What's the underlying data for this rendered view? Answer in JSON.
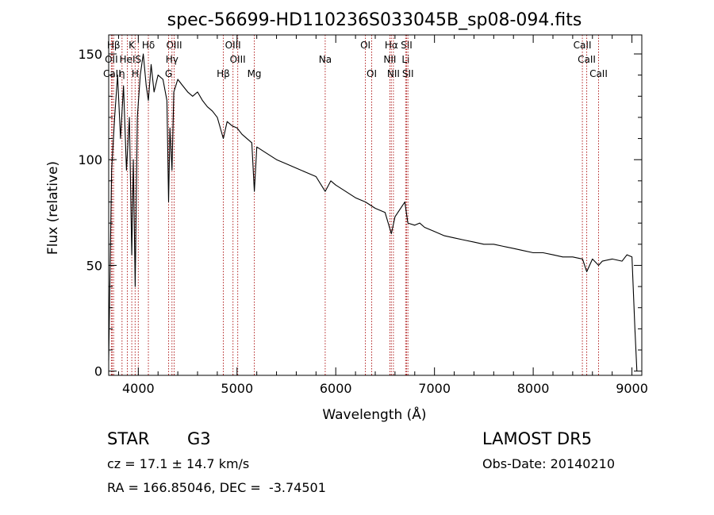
{
  "chart_data": {
    "type": "line",
    "title": "spec-56699-HD110236S033045B_sp08-094.fits",
    "xlabel": "Wavelength (Å)",
    "ylabel": "Flux (relative)",
    "xlim": [
      3700,
      9100
    ],
    "ylim": [
      -2,
      159
    ],
    "x_ticks": [
      4000,
      5000,
      6000,
      7000,
      8000,
      9000
    ],
    "y_ticks": [
      0,
      50,
      100,
      150
    ],
    "grid": false,
    "line_color": "#000000",
    "marker_color": "#b22222",
    "spectral_lines": [
      {
        "label": "Hβ",
        "wavelength": 3750,
        "row": 0
      },
      {
        "label": "OII",
        "wavelength": 3727,
        "row": 1
      },
      {
        "label": "CaII",
        "wavelength": 3735,
        "row": 2
      },
      {
        "label": "HeI",
        "wavelength": 3889,
        "row": 1
      },
      {
        "label": "η",
        "wavelength": 3835,
        "row": 2
      },
      {
        "label": "K",
        "wavelength": 3934,
        "row": 0
      },
      {
        "label": "S",
        "wavelength": 4000,
        "row": 1
      },
      {
        "label": "H",
        "wavelength": 3968,
        "row": 2
      },
      {
        "label": "Hδ",
        "wavelength": 4102,
        "row": 0
      },
      {
        "label": "OIII",
        "wavelength": 4363,
        "row": 0
      },
      {
        "label": "Hγ",
        "wavelength": 4341,
        "row": 1
      },
      {
        "label": "G",
        "wavelength": 4307,
        "row": 2
      },
      {
        "label": "OIII",
        "wavelength": 4959,
        "row": 0
      },
      {
        "label": "OIII",
        "wavelength": 5007,
        "row": 1
      },
      {
        "label": "Hβ",
        "wavelength": 4861,
        "row": 2
      },
      {
        "label": "Mg",
        "wavelength": 5175,
        "row": 2
      },
      {
        "label": "Na",
        "wavelength": 5893,
        "row": 1
      },
      {
        "label": "OI",
        "wavelength": 6300,
        "row": 0
      },
      {
        "label": "OI",
        "wavelength": 6364,
        "row": 2
      },
      {
        "label": "Hα",
        "wavelength": 6563,
        "row": 0
      },
      {
        "label": "NII",
        "wavelength": 6548,
        "row": 1
      },
      {
        "label": "NII",
        "wavelength": 6584,
        "row": 2
      },
      {
        "label": "SII",
        "wavelength": 6717,
        "row": 0
      },
      {
        "label": "Li",
        "wavelength": 6708,
        "row": 1
      },
      {
        "label": "SII",
        "wavelength": 6731,
        "row": 2
      },
      {
        "label": "CaII",
        "wavelength": 8498,
        "row": 0
      },
      {
        "label": "CaII",
        "wavelength": 8542,
        "row": 1
      },
      {
        "label": "CaII",
        "wavelength": 8662,
        "row": 2
      }
    ],
    "series": [
      {
        "x": [
          3700,
          3730,
          3760,
          3790,
          3820,
          3850,
          3880,
          3910,
          3934,
          3950,
          3968,
          3990,
          4020,
          4050,
          4080,
          4102,
          4130,
          4160,
          4200,
          4250,
          4290,
          4307,
          4320,
          4341,
          4360,
          4400,
          4450,
          4500,
          4550,
          4600,
          4650,
          4700,
          4750,
          4800,
          4861,
          4900,
          4950,
          5000,
          5050,
          5100,
          5150,
          5175,
          5200,
          5300,
          5400,
          5500,
          5600,
          5700,
          5800,
          5893,
          5950,
          6000,
          6100,
          6200,
          6300,
          6400,
          6500,
          6563,
          6600,
          6700,
          6730,
          6800,
          6850,
          6900,
          7000,
          7100,
          7200,
          7300,
          7400,
          7500,
          7600,
          7700,
          7800,
          7900,
          8000,
          8100,
          8200,
          8300,
          8400,
          8500,
          8542,
          8600,
          8662,
          8700,
          8800,
          8900,
          8950,
          9000,
          9030,
          9050
        ],
        "y": [
          5,
          95,
          120,
          140,
          110,
          135,
          95,
          120,
          55,
          100,
          40,
          120,
          140,
          150,
          135,
          128,
          145,
          132,
          140,
          138,
          128,
          80,
          115,
          95,
          132,
          138,
          135,
          132,
          130,
          132,
          128,
          125,
          123,
          120,
          110,
          118,
          116,
          115,
          112,
          110,
          108,
          85,
          106,
          103,
          100,
          98,
          96,
          94,
          92,
          85,
          90,
          88,
          85,
          82,
          80,
          77,
          75,
          65,
          73,
          80,
          70,
          69,
          70,
          68,
          66,
          64,
          63,
          62,
          61,
          60,
          60,
          59,
          58,
          57,
          56,
          56,
          55,
          54,
          54,
          53,
          47,
          53,
          50,
          52,
          53,
          52,
          55,
          54,
          20,
          0
        ]
      }
    ]
  },
  "info": {
    "object_class": "STAR",
    "subclass": "G3",
    "survey": "LAMOST DR5",
    "redshift": "cz = 17.1 ± 14.7 km/s",
    "obs_date": "Obs-Date: 20140210",
    "coordinates": "RA = 166.85046, DEC =  -3.74501"
  }
}
